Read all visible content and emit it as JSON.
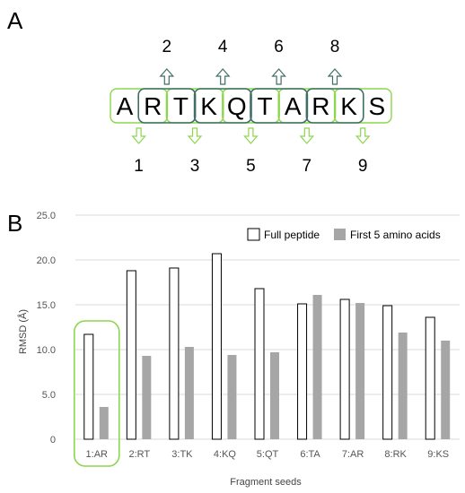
{
  "panels": {
    "a_label": "A",
    "b_label": "B"
  },
  "sequence": {
    "letters": [
      "A",
      "R",
      "T",
      "K",
      "Q",
      "T",
      "A",
      "R",
      "K",
      "S"
    ],
    "top_numbers": [
      "2",
      "4",
      "6",
      "8"
    ],
    "bottom_numbers": [
      "1",
      "3",
      "5",
      "7",
      "9"
    ]
  },
  "colors": {
    "odd_fragment": "#8CD64E",
    "even_fragment": "#3F6F63",
    "full_peptide_fill": "#ffffff",
    "full_peptide_stroke": "#000000",
    "first5_fill": "#A6A6A6",
    "highlight": "#8CD64E",
    "grid": "#DADADA"
  },
  "chart_data": {
    "type": "bar",
    "categories": [
      "1:AR",
      "2:RT",
      "3:TK",
      "4:KQ",
      "5:QT",
      "6:TA",
      "7:AR",
      "8:RK",
      "9:KS"
    ],
    "series": [
      {
        "name": "Full peptide",
        "values": [
          11.7,
          18.8,
          19.1,
          20.7,
          16.8,
          15.1,
          15.6,
          14.9,
          13.6
        ]
      },
      {
        "name": "First 5 amino acids",
        "values": [
          3.6,
          9.3,
          10.3,
          9.4,
          9.7,
          16.1,
          15.2,
          11.9,
          11.0
        ]
      }
    ],
    "ylim": [
      0,
      25
    ],
    "yticks": [
      "0",
      "5.0",
      "10.0",
      "15.0",
      "20.0",
      "25.0"
    ],
    "ylabel": "RMSD (Å)",
    "xlabel": "Fragment seeds",
    "legend_position": "top-right",
    "highlighted_category": "1:AR",
    "grid": true
  }
}
